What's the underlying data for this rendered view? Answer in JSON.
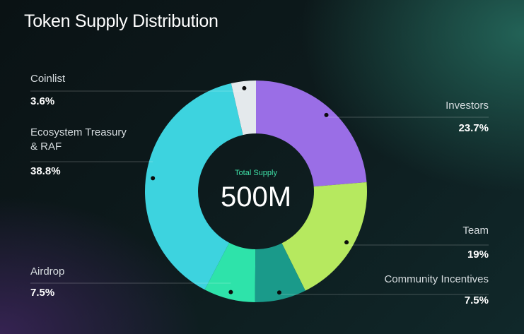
{
  "title": "Token Supply Distribution",
  "center": {
    "caption": "Total Supply",
    "value": "500M"
  },
  "colors": {
    "investors": "#9a6ee6",
    "team": "#b6e95f",
    "community": "#1a9a8a",
    "airdrop": "#2ee3aa",
    "ecosystem": "#3dd3df",
    "coinlist": "#e4e9ec",
    "caption": "#3fe0a7"
  },
  "chart_data": {
    "type": "pie",
    "title": "Token Supply Distribution",
    "series": [
      {
        "name": "Investors",
        "value": 23.7,
        "label": "23.7%",
        "color": "#9a6ee6"
      },
      {
        "name": "Team",
        "value": 19,
        "label": "19%",
        "color": "#b6e95f"
      },
      {
        "name": "Community Incentives",
        "value": 7.5,
        "label": "7.5%",
        "color": "#1a9a8a"
      },
      {
        "name": "Airdrop",
        "value": 7.5,
        "label": "7.5%",
        "color": "#2ee3aa"
      },
      {
        "name": "Ecosystem Treasury & RAF",
        "value": 38.8,
        "label": "38.8%",
        "color": "#3dd3df"
      },
      {
        "name": "Coinlist",
        "value": 3.6,
        "label": "3.6%",
        "color": "#e4e9ec"
      }
    ]
  }
}
